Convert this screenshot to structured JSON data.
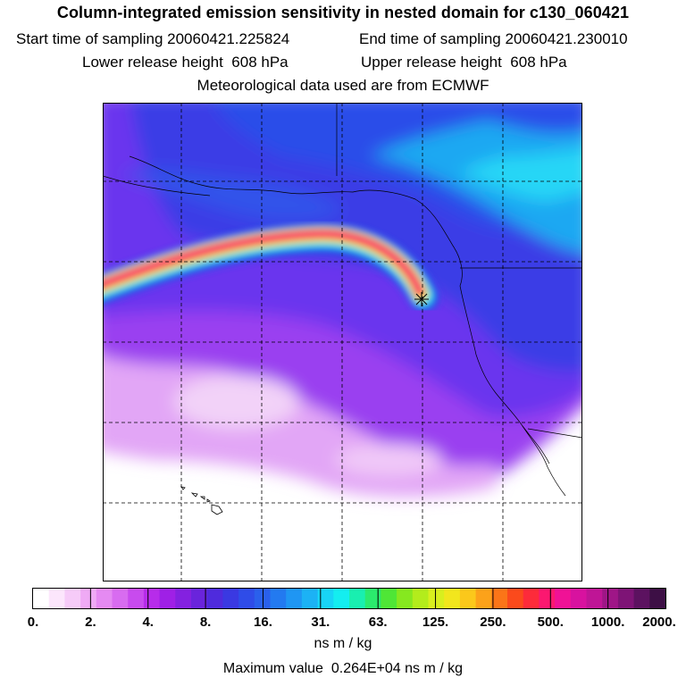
{
  "header": {
    "title": "Column-integrated emission sensitivity in nested domain for c130_060421",
    "start_label": "Start time of sampling",
    "start_value": "20060421.225824",
    "end_label": "End time of sampling",
    "end_value": "20060421.230010",
    "lower_label": "Lower release height",
    "lower_value": "608 hPa",
    "upper_label": "Upper release height",
    "upper_value": "608 hPa",
    "met_line": "Meteorological data used are from ECMWF"
  },
  "map": {
    "release_marker": "release-point-star-icon",
    "colors": {
      "ocean_low": "#a24bf0",
      "ocean_mid": "#6d3ff2",
      "north_blue": "#2a44e8",
      "cyan": "#22c8f5",
      "plume": "#ff1a78"
    }
  },
  "colorbar": {
    "ticks": [
      "0.",
      "2.",
      "4.",
      "8.",
      "16.",
      "31.",
      "63.",
      "125.",
      "250.",
      "500.",
      "1000.",
      "2000."
    ],
    "units": "ns m / kg",
    "colors": [
      "#ffffff",
      "#fce6fc",
      "#f6cbf8",
      "#efaaf5",
      "#e58af2",
      "#d86cf0",
      "#c84bee",
      "#b72cea",
      "#9f20e6",
      "#8421e0",
      "#6a24dc",
      "#4f2bdd",
      "#3a39e2",
      "#2f4ce8",
      "#2a60ec",
      "#237af0",
      "#1f96f3",
      "#1cb2f5",
      "#18d4f6",
      "#14eef0",
      "#19efb0",
      "#2bea6d",
      "#4fe636",
      "#86e81f",
      "#b3ec1c",
      "#d8ef1e",
      "#f2e61d",
      "#fbc81b",
      "#fca21a",
      "#fb7518",
      "#fb4a1c",
      "#fd2b3a",
      "#fb1870",
      "#f01296",
      "#d8129f",
      "#bf1596",
      "#9f1687",
      "#7e1476",
      "#5c1260",
      "#3d0f45"
    ],
    "max_label": "Maximum value",
    "max_value": "0.264E+04",
    "max_units": "ns m / kg"
  }
}
